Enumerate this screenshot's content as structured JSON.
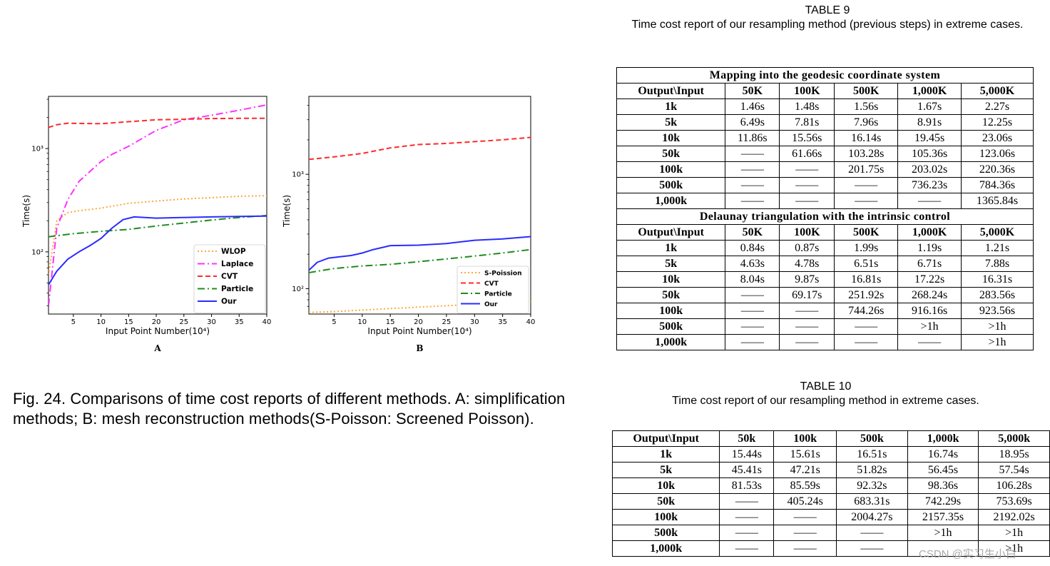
{
  "figure_caption": "Fig. 24. Comparisons of time cost reports of different methods. A: simplification methods; B: mesh reconstruction methods(S-Poisson: Screened Poisson).",
  "chart_data": [
    {
      "type": "line",
      "panel_label": "A",
      "xlabel": "Input Point Number(10⁴)",
      "ylabel": "Time(s)",
      "xlim": [
        0.5,
        40
      ],
      "ylim_log": [
        25,
        3200
      ],
      "yscale": "log",
      "xticks": [
        5,
        10,
        15,
        20,
        25,
        30,
        35,
        40
      ],
      "yticks": [
        {
          "value": 100,
          "label": "10²"
        },
        {
          "value": 1000,
          "label": "10³"
        }
      ],
      "legend_position": "lower-right",
      "series": [
        {
          "name": "WLOP",
          "color": "#ffa83a",
          "dash": "2,3",
          "x": [
            0.5,
            2,
            4,
            6,
            10,
            15,
            20,
            25,
            30,
            35,
            40
          ],
          "y": [
            60,
            200,
            240,
            250,
            265,
            295,
            310,
            325,
            335,
            345,
            350
          ]
        },
        {
          "name": "Laplace",
          "color": "#ff30ff",
          "dash": "10,4,2,4",
          "x": [
            0.5,
            2,
            4,
            6,
            8,
            10,
            12,
            15,
            20,
            25,
            30,
            35,
            40
          ],
          "y": [
            30,
            170,
            320,
            480,
            600,
            750,
            880,
            1050,
            1500,
            1900,
            2100,
            2350,
            2650
          ]
        },
        {
          "name": "CVT",
          "color": "#ff2a2a",
          "dash": "7,4",
          "x": [
            0.5,
            2,
            4,
            6,
            10,
            15,
            20,
            25,
            30,
            35,
            40
          ],
          "y": [
            1600,
            1700,
            1760,
            1750,
            1740,
            1820,
            1900,
            1920,
            1950,
            1960,
            1960
          ]
        },
        {
          "name": "Particle",
          "color": "#1e8c1e",
          "dash": "10,4,2,4",
          "x": [
            0.5,
            5,
            10,
            15,
            20,
            25,
            30,
            35,
            40
          ],
          "y": [
            140,
            150,
            158,
            165,
            178,
            190,
            203,
            215,
            225
          ]
        },
        {
          "name": "Our",
          "color": "#2b2bff",
          "dash": "",
          "x": [
            0.5,
            2,
            4,
            6,
            8,
            10,
            12,
            14,
            16,
            20,
            25,
            30,
            35,
            40
          ],
          "y": [
            48,
            65,
            85,
            100,
            115,
            135,
            170,
            205,
            218,
            212,
            215,
            218,
            220,
            222
          ]
        }
      ]
    },
    {
      "type": "line",
      "panel_label": "B",
      "xlabel": "Input Point Number(10⁴)",
      "ylabel": "Time(s)",
      "xlim": [
        0.5,
        40
      ],
      "ylim_log": [
        60,
        4800
      ],
      "yscale": "log",
      "xticks": [
        5,
        10,
        15,
        20,
        25,
        30,
        35,
        40
      ],
      "yticks": [
        {
          "value": 100,
          "label": "10²"
        },
        {
          "value": 1000,
          "label": "10³"
        }
      ],
      "legend_position": "lower-right",
      "series": [
        {
          "name": "S-Poission",
          "color": "#ffa83a",
          "dash": "2,3",
          "x": [
            0.5,
            5,
            10,
            15,
            20,
            25,
            30,
            35,
            40
          ],
          "y": [
            62,
            63,
            65,
            67,
            69,
            71,
            73,
            75,
            77
          ]
        },
        {
          "name": "CVT",
          "color": "#ff2a2a",
          "dash": "7,4",
          "x": [
            0.5,
            5,
            10,
            15,
            20,
            25,
            30,
            35,
            40
          ],
          "y": [
            1350,
            1420,
            1520,
            1700,
            1820,
            1860,
            1930,
            2000,
            2100
          ]
        },
        {
          "name": "Particle",
          "color": "#1e8c1e",
          "dash": "10,4,2,4",
          "x": [
            0.5,
            5,
            10,
            15,
            20,
            25,
            30,
            35,
            40
          ],
          "y": [
            138,
            150,
            158,
            163,
            172,
            182,
            193,
            205,
            220
          ]
        },
        {
          "name": "Our",
          "color": "#2b2bff",
          "dash": "",
          "x": [
            0.5,
            2,
            4,
            6,
            8,
            10,
            12,
            15,
            20,
            25,
            30,
            35,
            40
          ],
          "y": [
            145,
            170,
            185,
            190,
            195,
            205,
            220,
            238,
            240,
            248,
            265,
            272,
            285
          ]
        }
      ]
    }
  ],
  "table9": {
    "title_line1": "TABLE 9",
    "title_line2": "Time cost report of our resampling method (previous steps) in extreme cases.",
    "section1": "Mapping into the geodesic coordinate system",
    "section2": "Delaunay triangulation with the intrinsic control",
    "header": [
      "Output\\Input",
      "50K",
      "100K",
      "500K",
      "1,000K",
      "5,000K"
    ],
    "rows1": [
      [
        "1k",
        "1.46s",
        "1.48s",
        "1.56s",
        "1.67s",
        "2.27s"
      ],
      [
        "5k",
        "6.49s",
        "7.81s",
        "7.96s",
        "8.91s",
        "12.25s"
      ],
      [
        "10k",
        "11.86s",
        "15.56s",
        "16.14s",
        "19.45s",
        "23.06s"
      ],
      [
        "50k",
        "——",
        "61.66s",
        "103.28s",
        "105.36s",
        "123.06s"
      ],
      [
        "100k",
        "——",
        "——",
        "201.75s",
        "203.02s",
        "220.36s"
      ],
      [
        "500k",
        "——",
        "——",
        "——",
        "736.23s",
        "784.36s"
      ],
      [
        "1,000k",
        "——",
        "——",
        "——",
        "——",
        "1365.84s"
      ]
    ],
    "rows2": [
      [
        "1k",
        "0.84s",
        "0.87s",
        "1.99s",
        "1.19s",
        "1.21s"
      ],
      [
        "5k",
        "4.63s",
        "4.78s",
        "6.51s",
        "6.71s",
        "7.88s"
      ],
      [
        "10k",
        "8.04s",
        "9.87s",
        "16.81s",
        "17.22s",
        "16.31s"
      ],
      [
        "50k",
        "——",
        "69.17s",
        "251.92s",
        "268.24s",
        "283.56s"
      ],
      [
        "100k",
        "——",
        "——",
        "744.26s",
        "916.16s",
        "923.56s"
      ],
      [
        "500k",
        "——",
        "——",
        "——",
        ">1h",
        ">1h"
      ],
      [
        "1,000k",
        "——",
        "——",
        "——",
        "——",
        ">1h"
      ]
    ]
  },
  "table10": {
    "title_line1": "TABLE 10",
    "title_line2": "Time cost report of our resampling method in extreme cases.",
    "header": [
      "Output\\Input",
      "50k",
      "100k",
      "500k",
      "1,000k",
      "5,000k"
    ],
    "rows": [
      [
        "1k",
        "15.44s",
        "15.61s",
        "16.51s",
        "16.74s",
        "18.95s"
      ],
      [
        "5k",
        "45.41s",
        "47.21s",
        "51.82s",
        "56.45s",
        "57.54s"
      ],
      [
        "10k",
        "81.53s",
        "85.59s",
        "92.32s",
        "98.36s",
        "106.28s"
      ],
      [
        "50k",
        "——",
        "405.24s",
        "683.31s",
        "742.29s",
        "753.69s"
      ],
      [
        "100k",
        "——",
        "——",
        "2004.27s",
        "2157.35s",
        "2192.02s"
      ],
      [
        "500k",
        "——",
        "——",
        "——",
        ">1h",
        ">1h"
      ],
      [
        "1,000k",
        "——",
        "——",
        "——",
        "",
        ">1h"
      ]
    ]
  },
  "watermark": "CSDN @实习生小白"
}
